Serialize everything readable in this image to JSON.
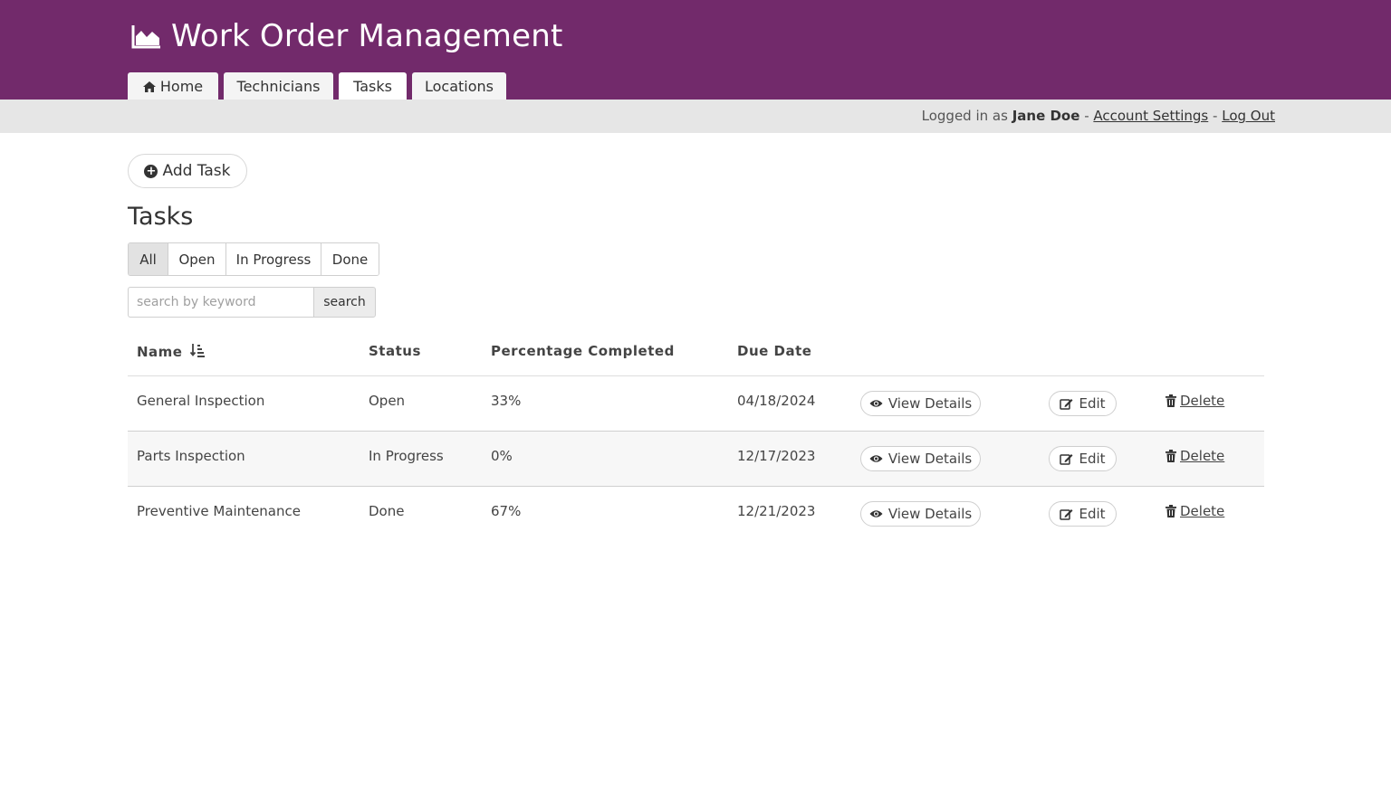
{
  "app": {
    "title": "Work Order Management",
    "brand_color": "#722a6b"
  },
  "nav": {
    "tabs": [
      {
        "label": "Home",
        "icon": "home-icon"
      },
      {
        "label": "Technicians"
      },
      {
        "label": "Tasks"
      },
      {
        "label": "Locations"
      }
    ]
  },
  "user_bar": {
    "prefix": "Logged in as",
    "user_name": "Jane Doe",
    "separator": "-",
    "account_settings": "Account Settings",
    "log_out": "Log Out"
  },
  "toolbar": {
    "add_task_label": "Add Task",
    "add_icon": "plus-circle-icon"
  },
  "page": {
    "title": "Tasks"
  },
  "filters": {
    "options": [
      "All",
      "Open",
      "In Progress",
      "Done"
    ],
    "selected": "All"
  },
  "search": {
    "placeholder": "search by keyword",
    "value": "",
    "button_label": "search"
  },
  "table": {
    "headers": {
      "name": "Name",
      "status": "Status",
      "percent": "Percentage Completed",
      "due": "Due Date"
    },
    "sort_icon": "sort-amount-icon",
    "action_labels": {
      "view": "View Details",
      "edit": "Edit",
      "delete": "Delete"
    },
    "action_icons": {
      "view": "eye-icon",
      "edit": "edit-icon",
      "delete": "trash-icon"
    },
    "rows": [
      {
        "name": "General Inspection",
        "status": "Open",
        "percent": "33%",
        "due": "04/18/2024"
      },
      {
        "name": "Parts Inspection",
        "status": "In Progress",
        "percent": "0%",
        "due": "12/17/2023"
      },
      {
        "name": "Preventive Maintenance",
        "status": "Done",
        "percent": "67%",
        "due": "12/21/2023"
      }
    ]
  }
}
